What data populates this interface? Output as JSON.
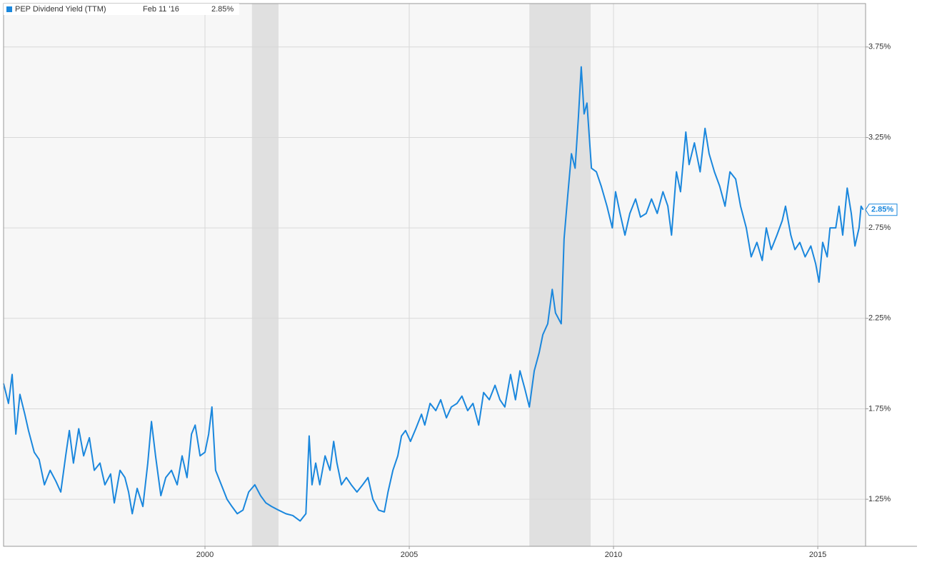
{
  "chart_data": {
    "type": "line",
    "series": [
      {
        "name": "PEP Dividend Yield (TTM)",
        "color": "#1a87dd",
        "x": [
          1995.07,
          1995.19,
          1995.28,
          1995.37,
          1995.47,
          1995.59,
          1995.68,
          1995.82,
          1995.94,
          1996.07,
          1996.21,
          1996.35,
          1996.47,
          1996.59,
          1996.68,
          1996.78,
          1996.91,
          1997.03,
          1997.17,
          1997.29,
          1997.43,
          1997.55,
          1997.69,
          1997.78,
          1997.92,
          1998.04,
          1998.13,
          1998.22,
          1998.34,
          1998.48,
          1998.6,
          1998.69,
          1998.79,
          1998.92,
          1999.04,
          1999.18,
          1999.32,
          1999.44,
          1999.56,
          1999.67,
          1999.76,
          1999.88,
          2000.0,
          2000.09,
          2000.17,
          2000.26,
          2000.4,
          2000.54,
          2000.66,
          2000.79,
          2000.93,
          2001.07,
          2001.22,
          2001.36,
          2001.49,
          2001.63,
          2001.8,
          2001.98,
          2002.15,
          2002.33,
          2002.47,
          2002.55,
          2002.62,
          2002.71,
          2002.81,
          2002.94,
          2003.06,
          2003.15,
          2003.23,
          2003.34,
          2003.46,
          2003.58,
          2003.72,
          2003.86,
          2003.99,
          2004.11,
          2004.25,
          2004.39,
          2004.48,
          2004.6,
          2004.72,
          2004.81,
          2004.91,
          2005.03,
          2005.16,
          2005.3,
          2005.38,
          2005.51,
          2005.65,
          2005.77,
          2005.91,
          2006.03,
          2006.17,
          2006.29,
          2006.43,
          2006.56,
          2006.7,
          2006.82,
          2006.96,
          2007.1,
          2007.22,
          2007.34,
          2007.48,
          2007.6,
          2007.71,
          2007.83,
          2007.94,
          2008.06,
          2008.18,
          2008.27,
          2008.39,
          2008.5,
          2008.58,
          2008.72,
          2008.79,
          2008.88,
          2008.97,
          2009.06,
          2009.14,
          2009.21,
          2009.28,
          2009.35,
          2009.46,
          2009.58,
          2009.7,
          2009.84,
          2009.97,
          2010.05,
          2010.16,
          2010.28,
          2010.4,
          2010.54,
          2010.66,
          2010.8,
          2010.93,
          2011.07,
          2011.21,
          2011.33,
          2011.42,
          2011.54,
          2011.64,
          2011.77,
          2011.85,
          2011.98,
          2012.12,
          2012.24,
          2012.34,
          2012.47,
          2012.6,
          2012.73,
          2012.85,
          2012.99,
          2013.11,
          2013.25,
          2013.37,
          2013.51,
          2013.64,
          2013.74,
          2013.86,
          2014.0,
          2014.13,
          2014.21,
          2014.34,
          2014.44,
          2014.56,
          2014.69,
          2014.83,
          2014.95,
          2015.03,
          2015.12,
          2015.23,
          2015.3,
          2015.44,
          2015.52,
          2015.61,
          2015.72,
          2015.82,
          2015.91,
          2016.01,
          2016.06,
          2016.11
        ],
        "values": [
          1.89,
          1.78,
          1.94,
          1.61,
          1.83,
          1.72,
          1.63,
          1.51,
          1.47,
          1.33,
          1.41,
          1.35,
          1.29,
          1.49,
          1.63,
          1.45,
          1.64,
          1.49,
          1.59,
          1.41,
          1.45,
          1.33,
          1.39,
          1.23,
          1.41,
          1.37,
          1.29,
          1.17,
          1.31,
          1.21,
          1.45,
          1.68,
          1.49,
          1.27,
          1.37,
          1.41,
          1.33,
          1.49,
          1.37,
          1.61,
          1.66,
          1.49,
          1.51,
          1.61,
          1.76,
          1.41,
          1.33,
          1.25,
          1.21,
          1.17,
          1.19,
          1.29,
          1.33,
          1.27,
          1.23,
          1.21,
          1.19,
          1.17,
          1.16,
          1.13,
          1.17,
          1.6,
          1.33,
          1.45,
          1.33,
          1.49,
          1.41,
          1.57,
          1.45,
          1.33,
          1.37,
          1.33,
          1.29,
          1.33,
          1.37,
          1.25,
          1.19,
          1.18,
          1.29,
          1.41,
          1.49,
          1.6,
          1.63,
          1.57,
          1.64,
          1.72,
          1.66,
          1.78,
          1.74,
          1.8,
          1.7,
          1.76,
          1.78,
          1.82,
          1.74,
          1.78,
          1.66,
          1.84,
          1.8,
          1.88,
          1.8,
          1.76,
          1.94,
          1.8,
          1.96,
          1.86,
          1.76,
          1.96,
          2.06,
          2.16,
          2.22,
          2.41,
          2.28,
          2.22,
          2.69,
          2.93,
          3.16,
          3.08,
          3.36,
          3.64,
          3.38,
          3.44,
          3.08,
          3.06,
          2.98,
          2.87,
          2.75,
          2.95,
          2.83,
          2.71,
          2.83,
          2.91,
          2.81,
          2.83,
          2.91,
          2.83,
          2.95,
          2.87,
          2.71,
          3.06,
          2.95,
          3.28,
          3.1,
          3.22,
          3.06,
          3.3,
          3.16,
          3.06,
          2.98,
          2.87,
          3.06,
          3.02,
          2.87,
          2.75,
          2.59,
          2.67,
          2.57,
          2.75,
          2.63,
          2.71,
          2.79,
          2.87,
          2.71,
          2.63,
          2.67,
          2.59,
          2.65,
          2.55,
          2.45,
          2.67,
          2.59,
          2.75,
          2.75,
          2.87,
          2.71,
          2.97,
          2.83,
          2.65,
          2.75,
          2.87,
          2.85
        ]
      }
    ],
    "current": {
      "date": "Feb 11 '16",
      "value": 2.85,
      "label": "2.85%"
    },
    "recessions": [
      [
        2001.15,
        2001.8
      ],
      [
        2007.94,
        2009.44
      ]
    ],
    "xlim": [
      1995.07,
      2016.17
    ],
    "xticks": [
      2000,
      2005,
      2010,
      2015
    ],
    "ylim": [
      0.99,
      3.99
    ],
    "yticks": [
      {
        "value": 1.25,
        "label": "1.25%"
      },
      {
        "value": 1.75,
        "label": "1.75%"
      },
      {
        "value": 2.25,
        "label": "2.25%"
      },
      {
        "value": 2.75,
        "label": "2.75%"
      },
      {
        "value": 3.25,
        "label": "3.25%"
      },
      {
        "value": 3.75,
        "label": "3.75%"
      }
    ],
    "grid": true
  }
}
